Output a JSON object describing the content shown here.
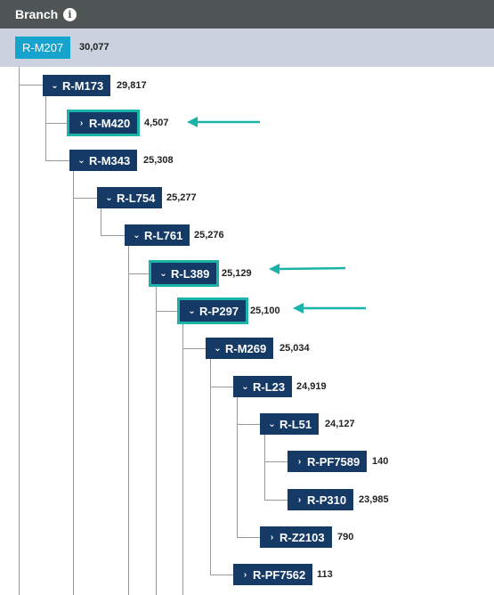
{
  "header": {
    "title": "Branch",
    "info_icon": "i"
  },
  "colors": {
    "node": "#163a66",
    "root": "#16a4cf",
    "highlight": "#1bb3a8",
    "arrow": "#1bb3a8"
  },
  "tree": {
    "root": {
      "label": "R-M207",
      "count": "30,077"
    },
    "nodes": [
      {
        "label": "R-M173",
        "count": "29,817",
        "expanded": true
      },
      {
        "label": "R-M420",
        "count": "4,507",
        "expanded": false,
        "highlighted": true
      },
      {
        "label": "R-M343",
        "count": "25,308",
        "expanded": true
      },
      {
        "label": "R-L754",
        "count": "25,277",
        "expanded": true
      },
      {
        "label": "R-L761",
        "count": "25,276",
        "expanded": true
      },
      {
        "label": "R-L389",
        "count": "25,129",
        "expanded": true,
        "highlighted": true
      },
      {
        "label": "R-P297",
        "count": "25,100",
        "expanded": true,
        "highlighted": true
      },
      {
        "label": "R-M269",
        "count": "25,034",
        "expanded": true
      },
      {
        "label": "R-L23",
        "count": "24,919",
        "expanded": true
      },
      {
        "label": "R-L51",
        "count": "24,127",
        "expanded": true
      },
      {
        "label": "R-PF7589",
        "count": "140",
        "expanded": false
      },
      {
        "label": "R-P310",
        "count": "23,985",
        "expanded": false
      },
      {
        "label": "R-Z2103",
        "count": "790",
        "expanded": false
      },
      {
        "label": "R-PF7562",
        "count": "113",
        "expanded": false
      }
    ]
  }
}
